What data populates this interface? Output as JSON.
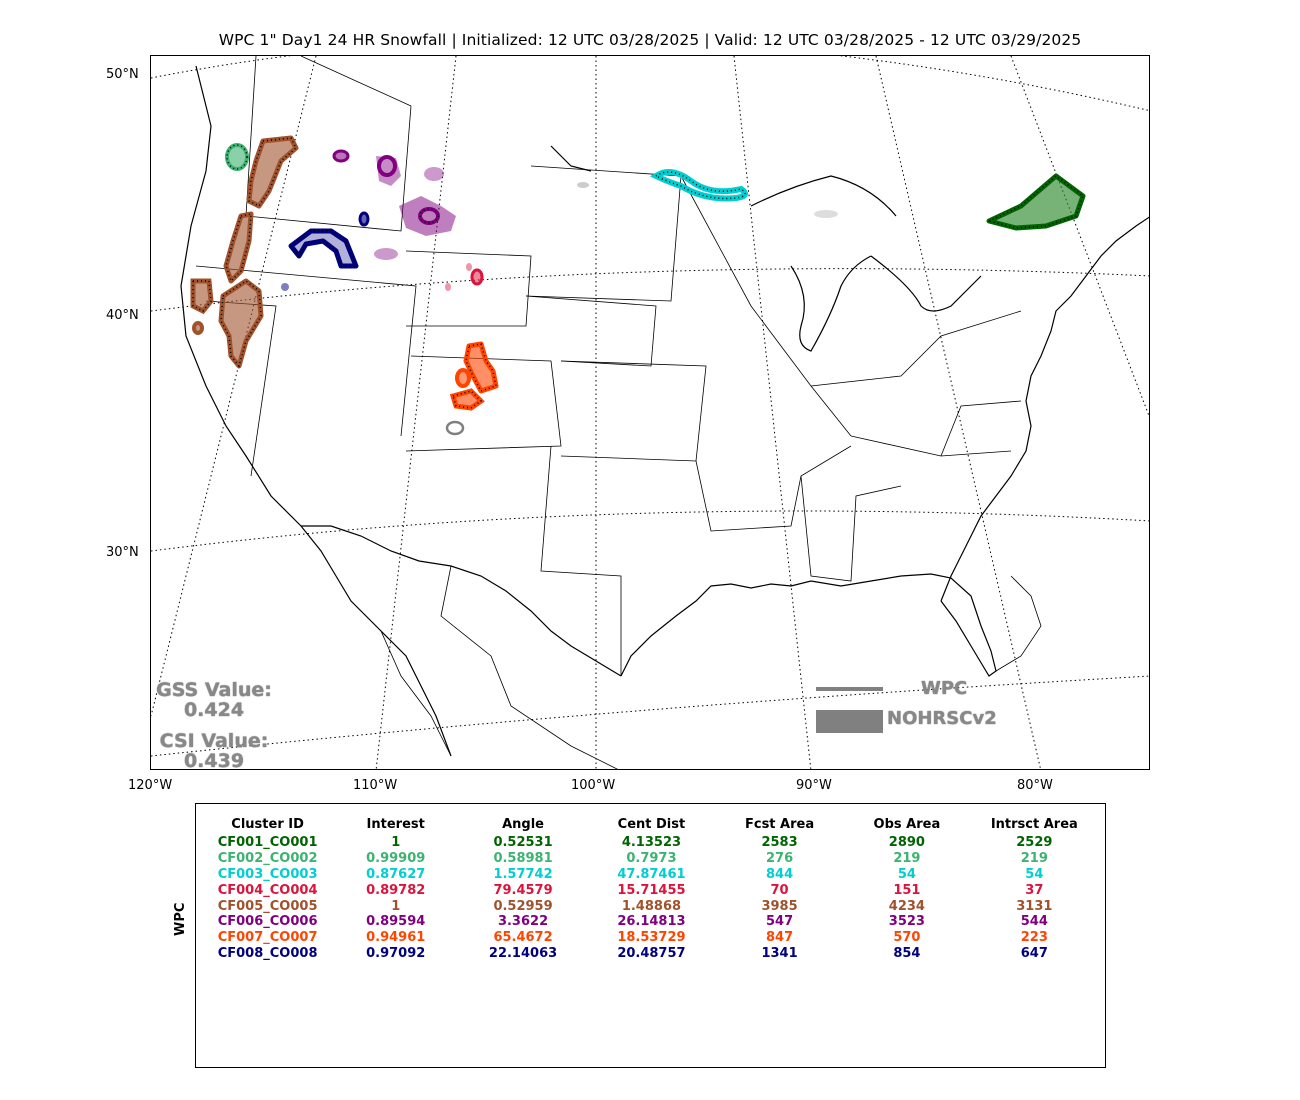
{
  "title": "WPC 1\" Day1 24 HR Snowfall | Initialized: 12 UTC 03/28/2025 | Valid: 12 UTC 03/28/2025 - 12 UTC 03/29/2025",
  "map": {
    "lat_labels": [
      "50°N",
      "40°N",
      "30°N"
    ],
    "lon_labels": [
      "120°W",
      "110°W",
      "100°W",
      "90°W",
      "80°W"
    ]
  },
  "scores": {
    "gss_label": "GSS Value:",
    "gss_value": "0.424",
    "csi_label": "CSI Value:",
    "csi_value": "0.439"
  },
  "legend": {
    "forecast_label": "WPC",
    "observed_label": "NOHRSCv2",
    "color": "#808080"
  },
  "table": {
    "side_label": "WPC",
    "headers": [
      "Cluster ID",
      "Interest",
      "Angle",
      "Cent Dist",
      "Fcst Area",
      "Obs Area",
      "Intrsct Area"
    ],
    "rows": [
      {
        "color": "#006400",
        "cells": [
          "CF001_CO001",
          "1",
          "0.52531",
          "4.13523",
          "2583",
          "2890",
          "2529"
        ]
      },
      {
        "color": "#3cb371",
        "cells": [
          "CF002_CO002",
          "0.99909",
          "0.58981",
          "0.7973",
          "276",
          "219",
          "219"
        ]
      },
      {
        "color": "#00ced1",
        "cells": [
          "CF003_CO003",
          "0.87627",
          "1.57742",
          "47.87461",
          "844",
          "54",
          "54"
        ]
      },
      {
        "color": "#dc143c",
        "cells": [
          "CF004_CO004",
          "0.89782",
          "79.4579",
          "15.71455",
          "70",
          "151",
          "37"
        ]
      },
      {
        "color": "#a0522d",
        "cells": [
          "CF005_CO005",
          "1",
          "0.52959",
          "1.48868",
          "3985",
          "4234",
          "3131"
        ]
      },
      {
        "color": "#800080",
        "cells": [
          "CF006_CO006",
          "0.89594",
          "3.3622",
          "26.14813",
          "547",
          "3523",
          "544"
        ]
      },
      {
        "color": "#ff4500",
        "cells": [
          "CF007_CO007",
          "0.94961",
          "65.4672",
          "18.53729",
          "847",
          "570",
          "223"
        ]
      },
      {
        "color": "#000080",
        "cells": [
          "CF008_CO008",
          "0.97092",
          "22.14063",
          "20.48757",
          "1341",
          "854",
          "647"
        ]
      }
    ]
  }
}
